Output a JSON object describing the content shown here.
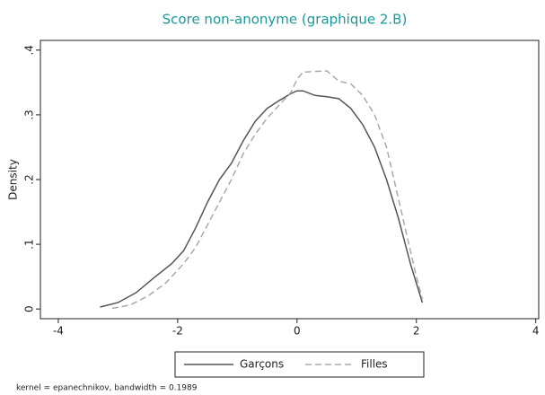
{
  "chart_data": {
    "type": "line",
    "title": "Score non-anonyme (graphique 2.B)",
    "y_label": "Density",
    "note": "kernel = epanechnikov, bandwidth = 0.1989",
    "xlim": [
      -4.3,
      4.05
    ],
    "xticks": [
      -4,
      -2,
      0,
      2,
      4
    ],
    "ylim": [
      -0.015,
      0.415
    ],
    "yticks": [
      {
        "value": 0,
        "label": "0"
      },
      {
        "value": 0.1,
        "label": ".1"
      },
      {
        "value": 0.2,
        "label": ".2"
      },
      {
        "value": 0.3,
        "label": ".3"
      },
      {
        "value": 0.4,
        "label": ".4"
      }
    ],
    "legend": "bottom",
    "series": [
      {
        "name": "Garçons",
        "color": "#555555",
        "line_style": "solid",
        "x": [
          -3.3,
          -3.0,
          -2.7,
          -2.4,
          -2.1,
          -1.9,
          -1.7,
          -1.5,
          -1.3,
          -1.1,
          -0.9,
          -0.7,
          -0.5,
          -0.3,
          -0.1,
          0,
          0.1,
          0.3,
          0.5,
          0.7,
          0.9,
          1.1,
          1.3,
          1.5,
          1.7,
          1.9,
          2.0,
          2.1
        ],
        "values": [
          0.003,
          0.01,
          0.025,
          0.048,
          0.07,
          0.09,
          0.125,
          0.165,
          0.2,
          0.225,
          0.26,
          0.29,
          0.31,
          0.322,
          0.333,
          0.337,
          0.337,
          0.33,
          0.328,
          0.325,
          0.31,
          0.285,
          0.25,
          0.2,
          0.14,
          0.07,
          0.04,
          0.01
        ]
      },
      {
        "name": "Filles",
        "color": "#aaaaaa",
        "line_style": "dashed",
        "x": [
          -3.1,
          -2.8,
          -2.5,
          -2.2,
          -1.9,
          -1.7,
          -1.5,
          -1.3,
          -1.1,
          -0.9,
          -0.7,
          -0.5,
          -0.3,
          -0.1,
          0,
          0.1,
          0.3,
          0.5,
          0.7,
          0.9,
          1.1,
          1.3,
          1.5,
          1.7,
          1.9,
          2.0,
          2.1
        ],
        "values": [
          0.001,
          0.006,
          0.02,
          0.04,
          0.07,
          0.095,
          0.13,
          0.165,
          0.2,
          0.24,
          0.27,
          0.295,
          0.315,
          0.335,
          0.355,
          0.366,
          0.367,
          0.368,
          0.352,
          0.348,
          0.33,
          0.3,
          0.25,
          0.17,
          0.09,
          0.05,
          0.015
        ]
      }
    ]
  }
}
